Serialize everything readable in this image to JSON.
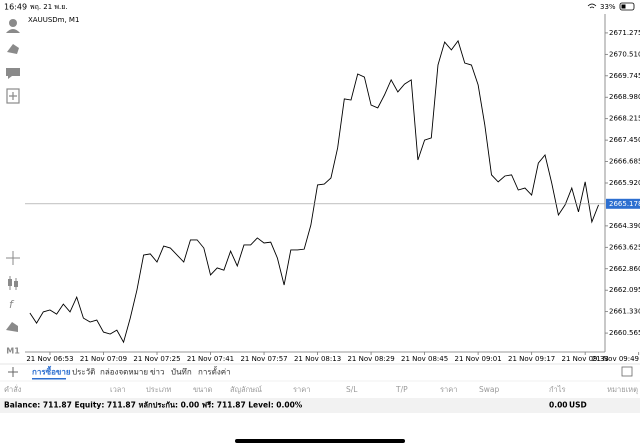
{
  "status_bar": {
    "time": "16:49",
    "date": "พฤ. 21 พ.ย.",
    "battery": "33%"
  },
  "toolbar": {
    "timeframe": "M1"
  },
  "chart_data": {
    "type": "line",
    "title": "XAUUSDm, M1",
    "color": "#000000",
    "categories": [
      null,
      null,
      null,
      null,
      "21 Nov 06:53",
      null,
      null,
      null,
      null,
      null,
      null,
      null,
      "21 Nov 07:09",
      null,
      null,
      null,
      null,
      null,
      null,
      null,
      "21 Nov 07:25",
      null,
      null,
      null,
      null,
      null,
      null,
      null,
      "21 Nov 07:41",
      null,
      null,
      null,
      null,
      null,
      null,
      null,
      "21 Nov 07:57",
      null,
      null,
      null,
      null,
      null,
      null,
      null,
      "21 Nov 08:13",
      null,
      null,
      null,
      null,
      null,
      null,
      null,
      "21 Nov 08:29",
      null,
      null,
      null,
      null,
      null,
      null,
      null,
      "21 Nov 08:45",
      null,
      null,
      null,
      null,
      null,
      null,
      null,
      "21 Nov 09:01",
      null,
      null,
      null,
      null,
      null,
      null,
      null,
      "21 Nov 09:17",
      null,
      null,
      null,
      null,
      null,
      null,
      null,
      "21 Nov 09:33",
      null,
      null,
      null,
      null,
      null,
      null,
      null,
      "21 Nov 09:49"
    ],
    "values": [
      null,
      2661.28,
      2660.92,
      2661.32,
      2661.39,
      2661.24,
      2661.6,
      2661.32,
      2661.85,
      2661.1,
      2660.96,
      2661.03,
      2660.6,
      2660.53,
      2660.67,
      2660.24,
      2661.1,
      2662.1,
      2663.35,
      2663.39,
      2663.1,
      2663.67,
      2663.6,
      2663.35,
      2663.1,
      2663.89,
      2663.89,
      2663.6,
      2662.64,
      2662.89,
      2662.81,
      2663.49,
      2662.96,
      2663.71,
      2663.71,
      2663.96,
      2663.78,
      2663.81,
      2663.24,
      2662.28,
      2663.53,
      2663.53,
      2663.56,
      2664.42,
      2665.85,
      2665.88,
      2666.1,
      2667.17,
      2668.92,
      2668.88,
      2669.81,
      2669.7,
      2668.7,
      2668.6,
      2669.06,
      2669.6,
      2669.17,
      2669.45,
      2669.6,
      2666.74,
      2667.45,
      2667.53,
      2670.13,
      2670.95,
      2670.67,
      2670.99,
      2670.2,
      2670.13,
      2669.42,
      2667.99,
      2666.21,
      2665.96,
      2666.17,
      2666.21,
      2665.67,
      2665.74,
      2665.49,
      2666.63,
      2666.92,
      2665.92,
      2664.78,
      2665.14,
      2665.74,
      2664.89,
      2665.96,
      2664.53,
      2665.14,
      null,
      null,
      null,
      null,
      null,
      null
    ],
    "price_line": 2665.178,
    "ylim": [
      2659.89,
      2671.95
    ],
    "yticks": [
      2660.565,
      {
        "value": 2661.33,
        "label": "2661.330"
      },
      2662.095,
      {
        "value": 2662.86,
        "label": "2662.860"
      },
      2663.625,
      {
        "value": 2664.39,
        "label": "2664.390"
      },
      {
        "value": 2665.92,
        "label": "2665.920"
      },
      2666.685,
      {
        "value": 2667.45,
        "label": "2667.450"
      },
      2668.215,
      {
        "value": 2668.98,
        "label": "2668.980"
      },
      2669.745,
      {
        "value": 2670.51,
        "label": "2670.510"
      },
      2671.275
    ]
  },
  "tabs": [
    "การซื้อขาย",
    "ประวัติ",
    "กล่องจดหมาย",
    "ข่าว",
    "บันทึก",
    "การตั้งค่า"
  ],
  "active_tab": 0,
  "columns": [
    "คำสั่ง",
    "เวลา",
    "ประเภท",
    "ขนาด",
    "สัญลักษณ์",
    "ราคา",
    "S/L",
    "T/P",
    "ราคา",
    "Swap",
    "กำไร",
    "หมายเหตุ"
  ],
  "account": {
    "summary": "Balance: 711.87 Equity: 711.87 หลักประกัน: 0.00 ฟรี: 711.87 Level: 0.00%",
    "profit": "0.00",
    "currency": "USD"
  }
}
